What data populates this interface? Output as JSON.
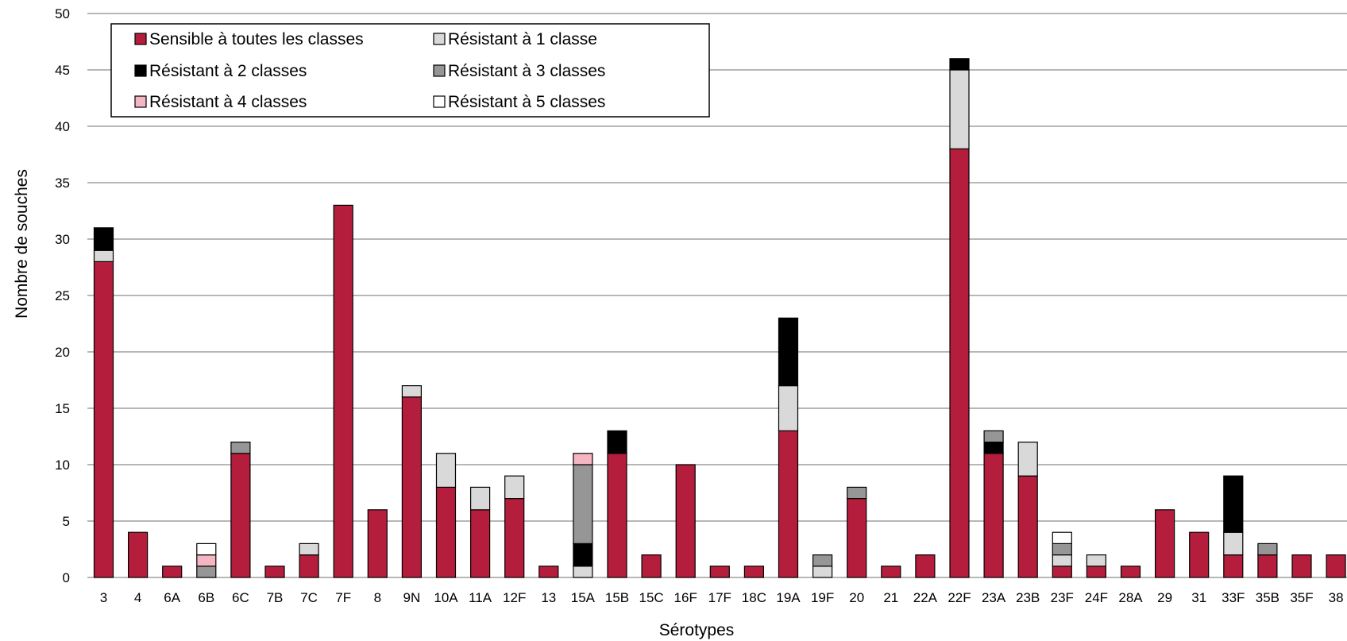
{
  "chart_data": {
    "type": "bar",
    "stacked": true,
    "xlabel": "Sérotypes",
    "ylabel": "Nombre de souches",
    "ylim": [
      0,
      50
    ],
    "yticks": [
      0,
      5,
      10,
      15,
      20,
      25,
      30,
      35,
      40,
      45,
      50
    ],
    "grid": true,
    "legend_position": "top-left",
    "categories": [
      "3",
      "4",
      "6A",
      "6B",
      "6C",
      "7B",
      "7C",
      "7F",
      "8",
      "9N",
      "10A",
      "11A",
      "12F",
      "13",
      "15A",
      "15B",
      "15C",
      "16F",
      "17F",
      "18C",
      "19A",
      "19F",
      "20",
      "21",
      "22A",
      "22F",
      "23A",
      "23B",
      "23F",
      "24F",
      "28A",
      "29",
      "31",
      "33F",
      "35B",
      "35F",
      "38"
    ],
    "series": [
      {
        "name": "Sensible à toutes les classes",
        "color": "#b41e3c",
        "values": [
          28,
          4,
          1,
          0,
          11,
          1,
          2,
          33,
          6,
          16,
          8,
          6,
          7,
          1,
          0,
          11,
          2,
          10,
          1,
          1,
          13,
          0,
          7,
          1,
          2,
          38,
          11,
          9,
          1,
          1,
          1,
          6,
          4,
          2,
          2,
          2,
          2
        ]
      },
      {
        "name": "Résistant à 1 classe",
        "color": "#d9d9d9",
        "values": [
          1,
          0,
          0,
          0,
          0,
          0,
          1,
          0,
          0,
          1,
          3,
          2,
          2,
          0,
          1,
          0,
          0,
          0,
          0,
          0,
          4,
          1,
          0,
          0,
          0,
          7,
          0,
          3,
          1,
          1,
          0,
          0,
          0,
          2,
          0,
          0,
          0
        ]
      },
      {
        "name": "Résistant à 2 classes",
        "color": "#000000",
        "values": [
          2,
          0,
          0,
          0,
          0,
          0,
          0,
          0,
          0,
          0,
          0,
          0,
          0,
          0,
          2,
          2,
          0,
          0,
          0,
          0,
          6,
          0,
          0,
          0,
          0,
          1,
          1,
          0,
          0,
          0,
          0,
          0,
          0,
          5,
          0,
          0,
          0
        ]
      },
      {
        "name": "Résistant à 3 classes",
        "color": "#969696",
        "values": [
          0,
          0,
          0,
          1,
          1,
          0,
          0,
          0,
          0,
          0,
          0,
          0,
          0,
          0,
          7,
          0,
          0,
          0,
          0,
          0,
          0,
          1,
          1,
          0,
          0,
          0,
          1,
          0,
          1,
          0,
          0,
          0,
          0,
          0,
          1,
          0,
          0
        ]
      },
      {
        "name": "Résistant à 4 classes",
        "color": "#f4b6c2",
        "values": [
          0,
          0,
          0,
          1,
          0,
          0,
          0,
          0,
          0,
          0,
          0,
          0,
          0,
          0,
          1,
          0,
          0,
          0,
          0,
          0,
          0,
          0,
          0,
          0,
          0,
          0,
          0,
          0,
          0,
          0,
          0,
          0,
          0,
          0,
          0,
          0,
          0
        ]
      },
      {
        "name": "Résistant à 5 classes",
        "color": "#ffffff",
        "values": [
          0,
          0,
          0,
          1,
          0,
          0,
          0,
          0,
          0,
          0,
          0,
          0,
          0,
          0,
          0,
          0,
          0,
          0,
          0,
          0,
          0,
          0,
          0,
          0,
          0,
          0,
          0,
          0,
          1,
          0,
          0,
          0,
          0,
          0,
          0,
          0,
          0
        ]
      }
    ]
  }
}
